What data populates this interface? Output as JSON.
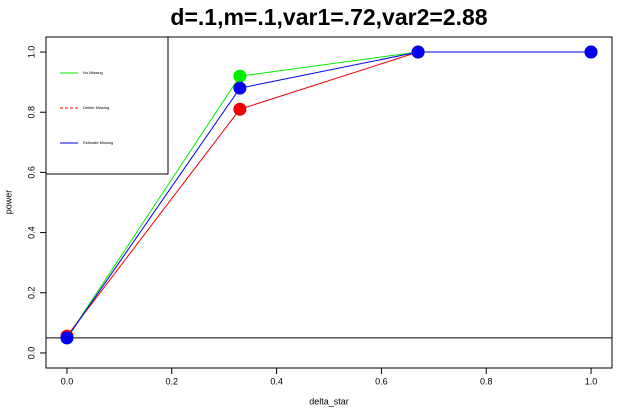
{
  "chart_data": {
    "type": "line",
    "title": "d=.1,m=.1,var1=.72,var2=2.88",
    "x_label": "delta_star",
    "y_label": "power",
    "x": [
      0,
      0.33,
      0.67,
      1
    ],
    "series": [
      {
        "name": "No Missing",
        "color": "#00ee00",
        "values": [
          0.05,
          0.92,
          1,
          1
        ]
      },
      {
        "name": "Delete Missing",
        "color": "#ee0000",
        "values": [
          0.056,
          0.81,
          1,
          1
        ],
        "legend_dash": true
      },
      {
        "name": "Estimate Missing",
        "color": "#0000ee",
        "values": [
          0.05,
          0.88,
          1,
          1
        ]
      }
    ],
    "xlim": [
      -0.04,
      1.04
    ],
    "xticks": [
      {
        "value": 0,
        "label": "0.0"
      },
      0.2,
      0.4,
      0.6,
      0.8,
      {
        "value": 1,
        "label": "1.0"
      }
    ],
    "ylim": [
      -0.05,
      1.05
    ],
    "yticks": [
      {
        "value": 0,
        "label": "0.0"
      },
      0.2,
      0.4,
      0.6,
      0.8,
      {
        "value": 1,
        "label": "1.0"
      }
    ],
    "hline": 0.05,
    "legend": "topleft"
  }
}
